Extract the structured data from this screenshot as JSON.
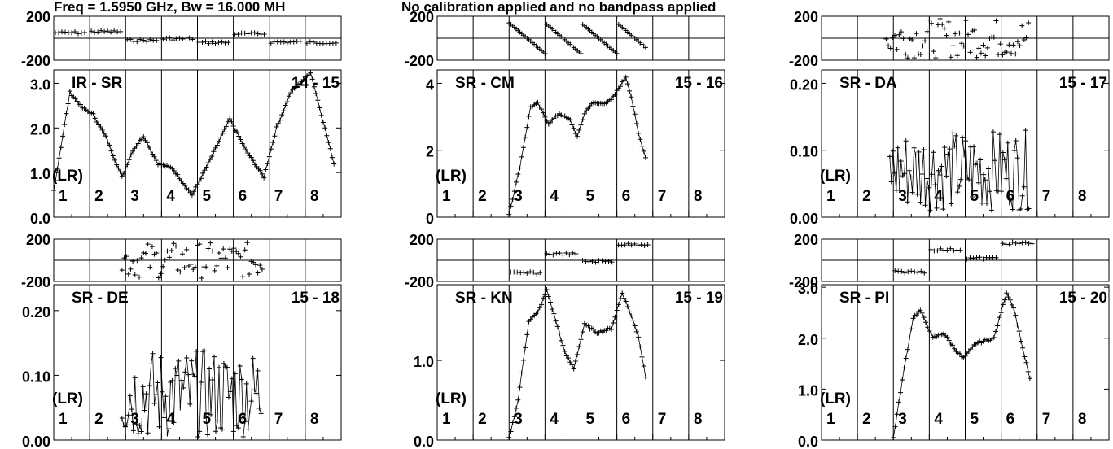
{
  "header": {
    "left": "Freq = 1.5950 GHz, Bw = 16.000 MH",
    "right": "No calibration applied and no bandpass applied"
  },
  "colors": {
    "ink": "#000000",
    "background": "#ffffff"
  },
  "chart_data": [
    {
      "type": "scatter",
      "title": "IR - SR",
      "baseline": "14 - 15",
      "polarization_label": "(LR)",
      "ifs": [
        "1",
        "2",
        "3",
        "4",
        "5",
        "6",
        "7",
        "8"
      ],
      "phase": {
        "yticks": [
          "200",
          "-200"
        ],
        "ylim": [
          -200,
          200
        ],
        "if_range": [
          1,
          8
        ],
        "segments": [
          [
            1,
            50
          ],
          [
            2,
            60
          ],
          [
            3,
            -20
          ],
          [
            4,
            -5
          ],
          [
            5,
            -40
          ],
          [
            6,
            40
          ],
          [
            7,
            -35
          ],
          [
            8,
            -40
          ]
        ]
      },
      "amp": {
        "yticks": [
          "3.0",
          "2.0",
          "1.0",
          "0.0"
        ],
        "ylim": [
          0,
          3.3
        ],
        "nodes": [
          [
            1.0,
            0.6
          ],
          [
            1.45,
            2.8
          ],
          [
            1.8,
            2.45
          ],
          [
            2.1,
            2.3
          ],
          [
            2.45,
            1.8
          ],
          [
            2.9,
            0.9
          ],
          [
            3.2,
            1.5
          ],
          [
            3.5,
            1.82
          ],
          [
            3.9,
            1.2
          ],
          [
            4.3,
            1.1
          ],
          [
            4.85,
            0.5
          ],
          [
            5.3,
            1.2
          ],
          [
            5.6,
            1.7
          ],
          [
            5.9,
            2.2
          ],
          [
            6.35,
            1.5
          ],
          [
            6.85,
            0.9
          ],
          [
            7.2,
            2.0
          ],
          [
            7.6,
            2.8
          ],
          [
            8.15,
            3.25
          ],
          [
            8.8,
            1.2
          ]
        ]
      }
    },
    {
      "type": "scatter",
      "title": "SR - CM",
      "baseline": "15 - 16",
      "polarization_label": "(LR)",
      "ifs": [
        "1",
        "2",
        "3",
        "4",
        "5",
        "6",
        "7",
        "8"
      ],
      "phase": {
        "yticks": [
          "200",
          "-200"
        ],
        "ylim": [
          -200,
          200
        ],
        "if_range": [
          3,
          6.8
        ],
        "wrap": {
          "start": 140,
          "slope": -280
        },
        "segments": []
      },
      "amp": {
        "yticks": [
          "4",
          "2",
          "0"
        ],
        "ylim": [
          0,
          4.4
        ],
        "nodes": [
          [
            3.0,
            0.1
          ],
          [
            3.3,
            1.5
          ],
          [
            3.6,
            3.3
          ],
          [
            3.8,
            3.4
          ],
          [
            4.1,
            2.8
          ],
          [
            4.4,
            3.1
          ],
          [
            4.7,
            2.9
          ],
          [
            4.9,
            2.4
          ],
          [
            5.1,
            3.1
          ],
          [
            5.3,
            3.4
          ],
          [
            5.6,
            3.4
          ],
          [
            5.85,
            3.5
          ],
          [
            6.25,
            4.2
          ],
          [
            6.4,
            3.6
          ],
          [
            6.6,
            2.5
          ],
          [
            6.8,
            1.8
          ]
        ]
      }
    },
    {
      "type": "scatter",
      "title": "SR - DA",
      "baseline": "15 - 17",
      "polarization_label": "(LR)",
      "ifs": [
        "1",
        "2",
        "3",
        "4",
        "5",
        "6",
        "7",
        "8"
      ],
      "phase": {
        "yticks": [
          "200",
          "-200"
        ],
        "ylim": [
          -200,
          200
        ],
        "if_range": [
          2.8,
          6.8
        ],
        "noise_amp": 180,
        "segments": []
      },
      "amp": {
        "yticks": [
          "0.20",
          "0.10",
          "0.00"
        ],
        "ylim": [
          0,
          0.22
        ],
        "noise": {
          "x_range": [
            2.9,
            6.8
          ],
          "base": 0.07,
          "spread": 0.06
        },
        "nodes": []
      }
    },
    {
      "type": "scatter",
      "title": "SR - DE",
      "baseline": "15 - 18",
      "polarization_label": "(LR)",
      "ifs": [
        "1",
        "2",
        "3",
        "4",
        "5",
        "6",
        "7",
        "8"
      ],
      "phase": {
        "yticks": [
          "200",
          "-200"
        ],
        "ylim": [
          -200,
          200
        ],
        "if_range": [
          2.9,
          6.8
        ],
        "noise_amp": 170,
        "segments": []
      },
      "amp": {
        "yticks": [
          "0.20",
          "0.10",
          "0.00"
        ],
        "ylim": [
          0,
          0.24
        ],
        "noise": {
          "x_range": [
            2.9,
            6.8
          ],
          "base": 0.07,
          "spread": 0.07
        },
        "nodes": []
      }
    },
    {
      "type": "scatter",
      "title": "SR - KN",
      "baseline": "15 - 19",
      "polarization_label": "(LR)",
      "ifs": [
        "1",
        "2",
        "3",
        "4",
        "5",
        "6",
        "7",
        "8"
      ],
      "phase": {
        "yticks": [
          "200",
          "-200"
        ],
        "ylim": [
          -200,
          200
        ],
        "if_range": [
          2.9,
          6.8
        ],
        "segments": [
          [
            3,
            -120
          ],
          [
            4,
            60
          ],
          [
            5,
            -10
          ],
          [
            6,
            150
          ]
        ]
      },
      "amp": {
        "yticks": [
          "1.0",
          "0.0"
        ],
        "ylim": [
          0,
          1.95
        ],
        "nodes": [
          [
            3.0,
            0.02
          ],
          [
            3.25,
            0.5
          ],
          [
            3.55,
            1.5
          ],
          [
            3.8,
            1.6
          ],
          [
            4.05,
            1.88
          ],
          [
            4.3,
            1.5
          ],
          [
            4.55,
            1.1
          ],
          [
            4.8,
            0.9
          ],
          [
            5.1,
            1.45
          ],
          [
            5.45,
            1.35
          ],
          [
            5.85,
            1.4
          ],
          [
            6.15,
            1.85
          ],
          [
            6.45,
            1.5
          ],
          [
            6.6,
            1.3
          ],
          [
            6.8,
            0.8
          ]
        ]
      }
    },
    {
      "type": "scatter",
      "title": "SR - PI",
      "baseline": "15 - 20",
      "polarization_label": "(LR)",
      "ifs": [
        "1",
        "2",
        "3",
        "4",
        "5",
        "6",
        "7",
        "8"
      ],
      "phase": {
        "yticks": [
          "200",
          "-200"
        ],
        "ylim": [
          -200,
          200
        ],
        "if_range": [
          2.9,
          6.8
        ],
        "segments": [
          [
            3,
            -110
          ],
          [
            4,
            100
          ],
          [
            5,
            20
          ],
          [
            6,
            160
          ]
        ]
      },
      "amp": {
        "yticks": [
          "3.0",
          "2.0",
          "1.0",
          "0.0"
        ],
        "ylim": [
          0,
          3.05
        ],
        "nodes": [
          [
            3.0,
            0.05
          ],
          [
            3.3,
            1.4
          ],
          [
            3.55,
            2.4
          ],
          [
            3.75,
            2.55
          ],
          [
            4.1,
            2.0
          ],
          [
            4.4,
            2.1
          ],
          [
            4.7,
            1.8
          ],
          [
            4.95,
            1.6
          ],
          [
            5.3,
            1.9
          ],
          [
            5.8,
            2.0
          ],
          [
            6.15,
            2.9
          ],
          [
            6.35,
            2.6
          ],
          [
            6.6,
            1.8
          ],
          [
            6.8,
            1.2
          ]
        ]
      }
    }
  ]
}
